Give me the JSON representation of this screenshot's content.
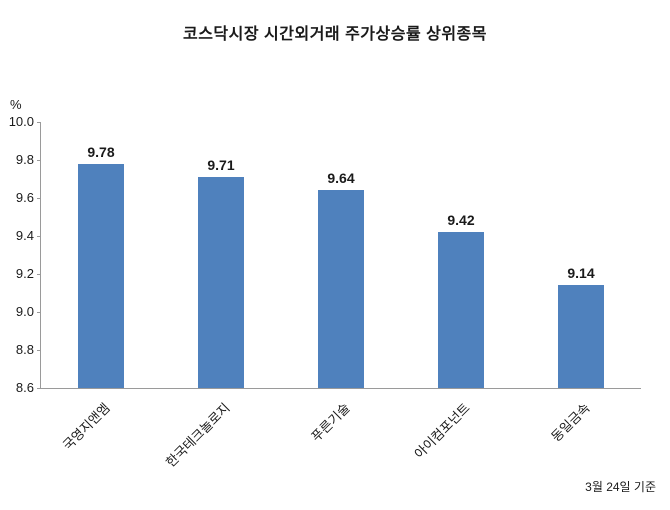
{
  "title": "코스닥시장 시간외거래  주가상승률 상위종목",
  "footer": "3월 24일 기준",
  "chart_data": {
    "type": "bar",
    "title": "코스닥시장 시간외거래  주가상승률 상위종목",
    "categories": [
      "국영지앤엠",
      "한국테크놀로지",
      "푸른기술",
      "아이컴포넌트",
      "동일금속"
    ],
    "values": [
      9.78,
      9.71,
      9.64,
      9.42,
      9.14
    ],
    "value_labels": [
      "9.78",
      "9.71",
      "9.64",
      "9.42",
      "9.14"
    ],
    "xlabel": "",
    "ylabel": "%",
    "ylim": [
      8.6,
      10.0
    ],
    "ytick_step": 0.2,
    "ytick_labels": [
      "10.0",
      "9.8",
      "9.6",
      "9.4",
      "9.2",
      "9.0",
      "8.8",
      "8.6"
    ],
    "grid": false,
    "legend": "none",
    "bar_color": "#4f81bd",
    "axis_color": "#9a9a9a",
    "annotation": "3월 24일 기준"
  }
}
